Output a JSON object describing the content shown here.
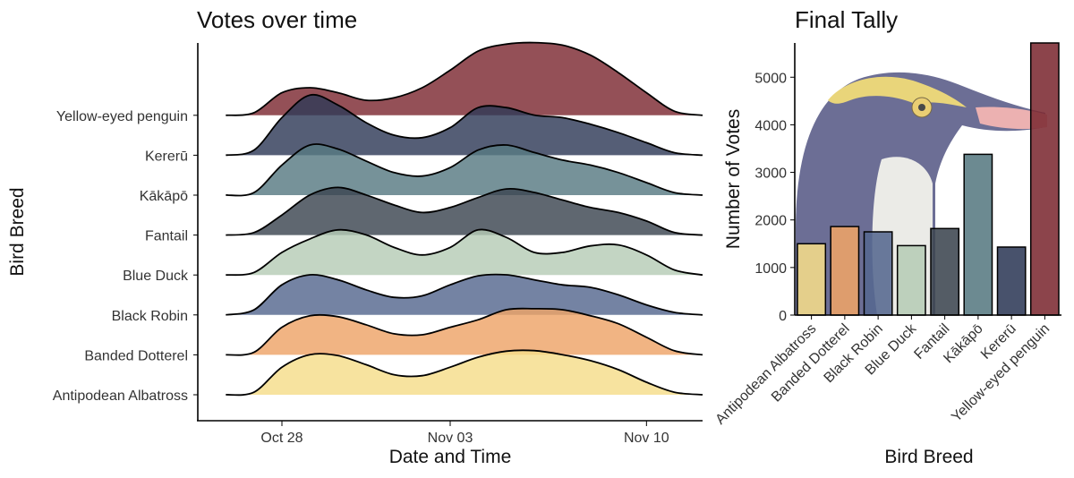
{
  "chart_data": [
    {
      "type": "area",
      "subtype": "ridgeline",
      "title": "Votes over time",
      "xlabel": "Date and Time",
      "ylabel": "Bird Breed",
      "x_ticks": [
        "Oct 28",
        "Nov 03",
        "Nov 10"
      ],
      "x_tick_dates": [
        "2019-10-28",
        "2019-11-03",
        "2019-11-10"
      ],
      "x_range": [
        "2019-10-25",
        "2019-11-12"
      ],
      "density_x_dates": [
        "2019-10-26",
        "2019-10-27",
        "2019-10-28",
        "2019-10-29",
        "2019-10-30",
        "2019-10-31",
        "2019-11-01",
        "2019-11-02",
        "2019-11-03",
        "2019-11-04",
        "2019-11-05",
        "2019-11-06",
        "2019-11-07",
        "2019-11-08",
        "2019-11-09",
        "2019-11-10",
        "2019-11-11",
        "2019-11-12"
      ],
      "grid": false,
      "series": [
        {
          "name": "Antipodean Albatross",
          "color": "#f5dd8a",
          "density": [
            0.0,
            0.05,
            0.55,
            0.8,
            0.78,
            0.6,
            0.4,
            0.38,
            0.55,
            0.75,
            0.87,
            0.88,
            0.8,
            0.68,
            0.5,
            0.25,
            0.05,
            0.0
          ]
        },
        {
          "name": "Banded Dotterel",
          "color": "#eea468",
          "density": [
            0.0,
            0.05,
            0.55,
            0.78,
            0.76,
            0.6,
            0.42,
            0.4,
            0.55,
            0.7,
            0.9,
            0.92,
            0.9,
            0.78,
            0.62,
            0.35,
            0.08,
            0.0
          ]
        },
        {
          "name": "Black Robin",
          "color": "#55688f",
          "density": [
            0.0,
            0.1,
            0.6,
            0.8,
            0.7,
            0.5,
            0.35,
            0.38,
            0.6,
            0.78,
            0.8,
            0.7,
            0.6,
            0.55,
            0.4,
            0.2,
            0.05,
            0.0
          ]
        },
        {
          "name": "Blue Duck",
          "color": "#b6ccb6",
          "density": [
            0.0,
            0.05,
            0.45,
            0.72,
            0.9,
            0.8,
            0.55,
            0.4,
            0.55,
            0.9,
            0.75,
            0.45,
            0.45,
            0.58,
            0.6,
            0.4,
            0.1,
            0.0
          ]
        },
        {
          "name": "Fantail",
          "color": "#3c4650",
          "density": [
            0.0,
            0.05,
            0.4,
            0.8,
            0.95,
            0.8,
            0.6,
            0.45,
            0.55,
            0.75,
            0.92,
            0.85,
            0.7,
            0.55,
            0.45,
            0.28,
            0.05,
            0.0
          ]
        },
        {
          "name": "Kākāpō",
          "color": "#587a82",
          "density": [
            0.0,
            0.05,
            0.6,
            1.0,
            0.92,
            0.68,
            0.45,
            0.38,
            0.55,
            0.9,
            1.0,
            0.85,
            0.7,
            0.6,
            0.45,
            0.25,
            0.05,
            0.0
          ]
        },
        {
          "name": "Kererū",
          "color": "#2f3a58",
          "density": [
            0.0,
            0.1,
            0.75,
            1.2,
            1.0,
            0.65,
            0.4,
            0.35,
            0.55,
            0.95,
            0.95,
            0.8,
            0.75,
            0.62,
            0.45,
            0.25,
            0.05,
            0.0
          ]
        },
        {
          "name": "Yellow-eyed penguin",
          "color": "#7c2a32",
          "density": [
            0.0,
            0.05,
            0.45,
            0.55,
            0.45,
            0.3,
            0.35,
            0.55,
            0.9,
            1.28,
            1.42,
            1.45,
            1.4,
            1.2,
            0.85,
            0.45,
            0.08,
            0.0
          ]
        }
      ]
    },
    {
      "type": "bar",
      "title": "Final Tally",
      "xlabel": "Bird Breed",
      "ylabel": "Number of Votes",
      "categories": [
        "Antipodean Albatross",
        "Banded Dotterel",
        "Black Robin",
        "Blue Duck",
        "Fantail",
        "Kākāpō",
        "Kererū",
        "Yellow-eyed penguin"
      ],
      "values": [
        1500,
        1860,
        1750,
        1460,
        1820,
        3380,
        1430,
        5720
      ],
      "colors": [
        "#f5dd8a",
        "#eea468",
        "#55688f",
        "#b6ccb6",
        "#3c4650",
        "#587a82",
        "#2f3a58",
        "#7c2a32"
      ],
      "y_ticks": [
        0,
        1000,
        2000,
        3000,
        4000,
        5000
      ],
      "ylim": [
        0,
        5720
      ],
      "grid": false,
      "background_image": "yellow-eyed-penguin-illustration"
    }
  ]
}
